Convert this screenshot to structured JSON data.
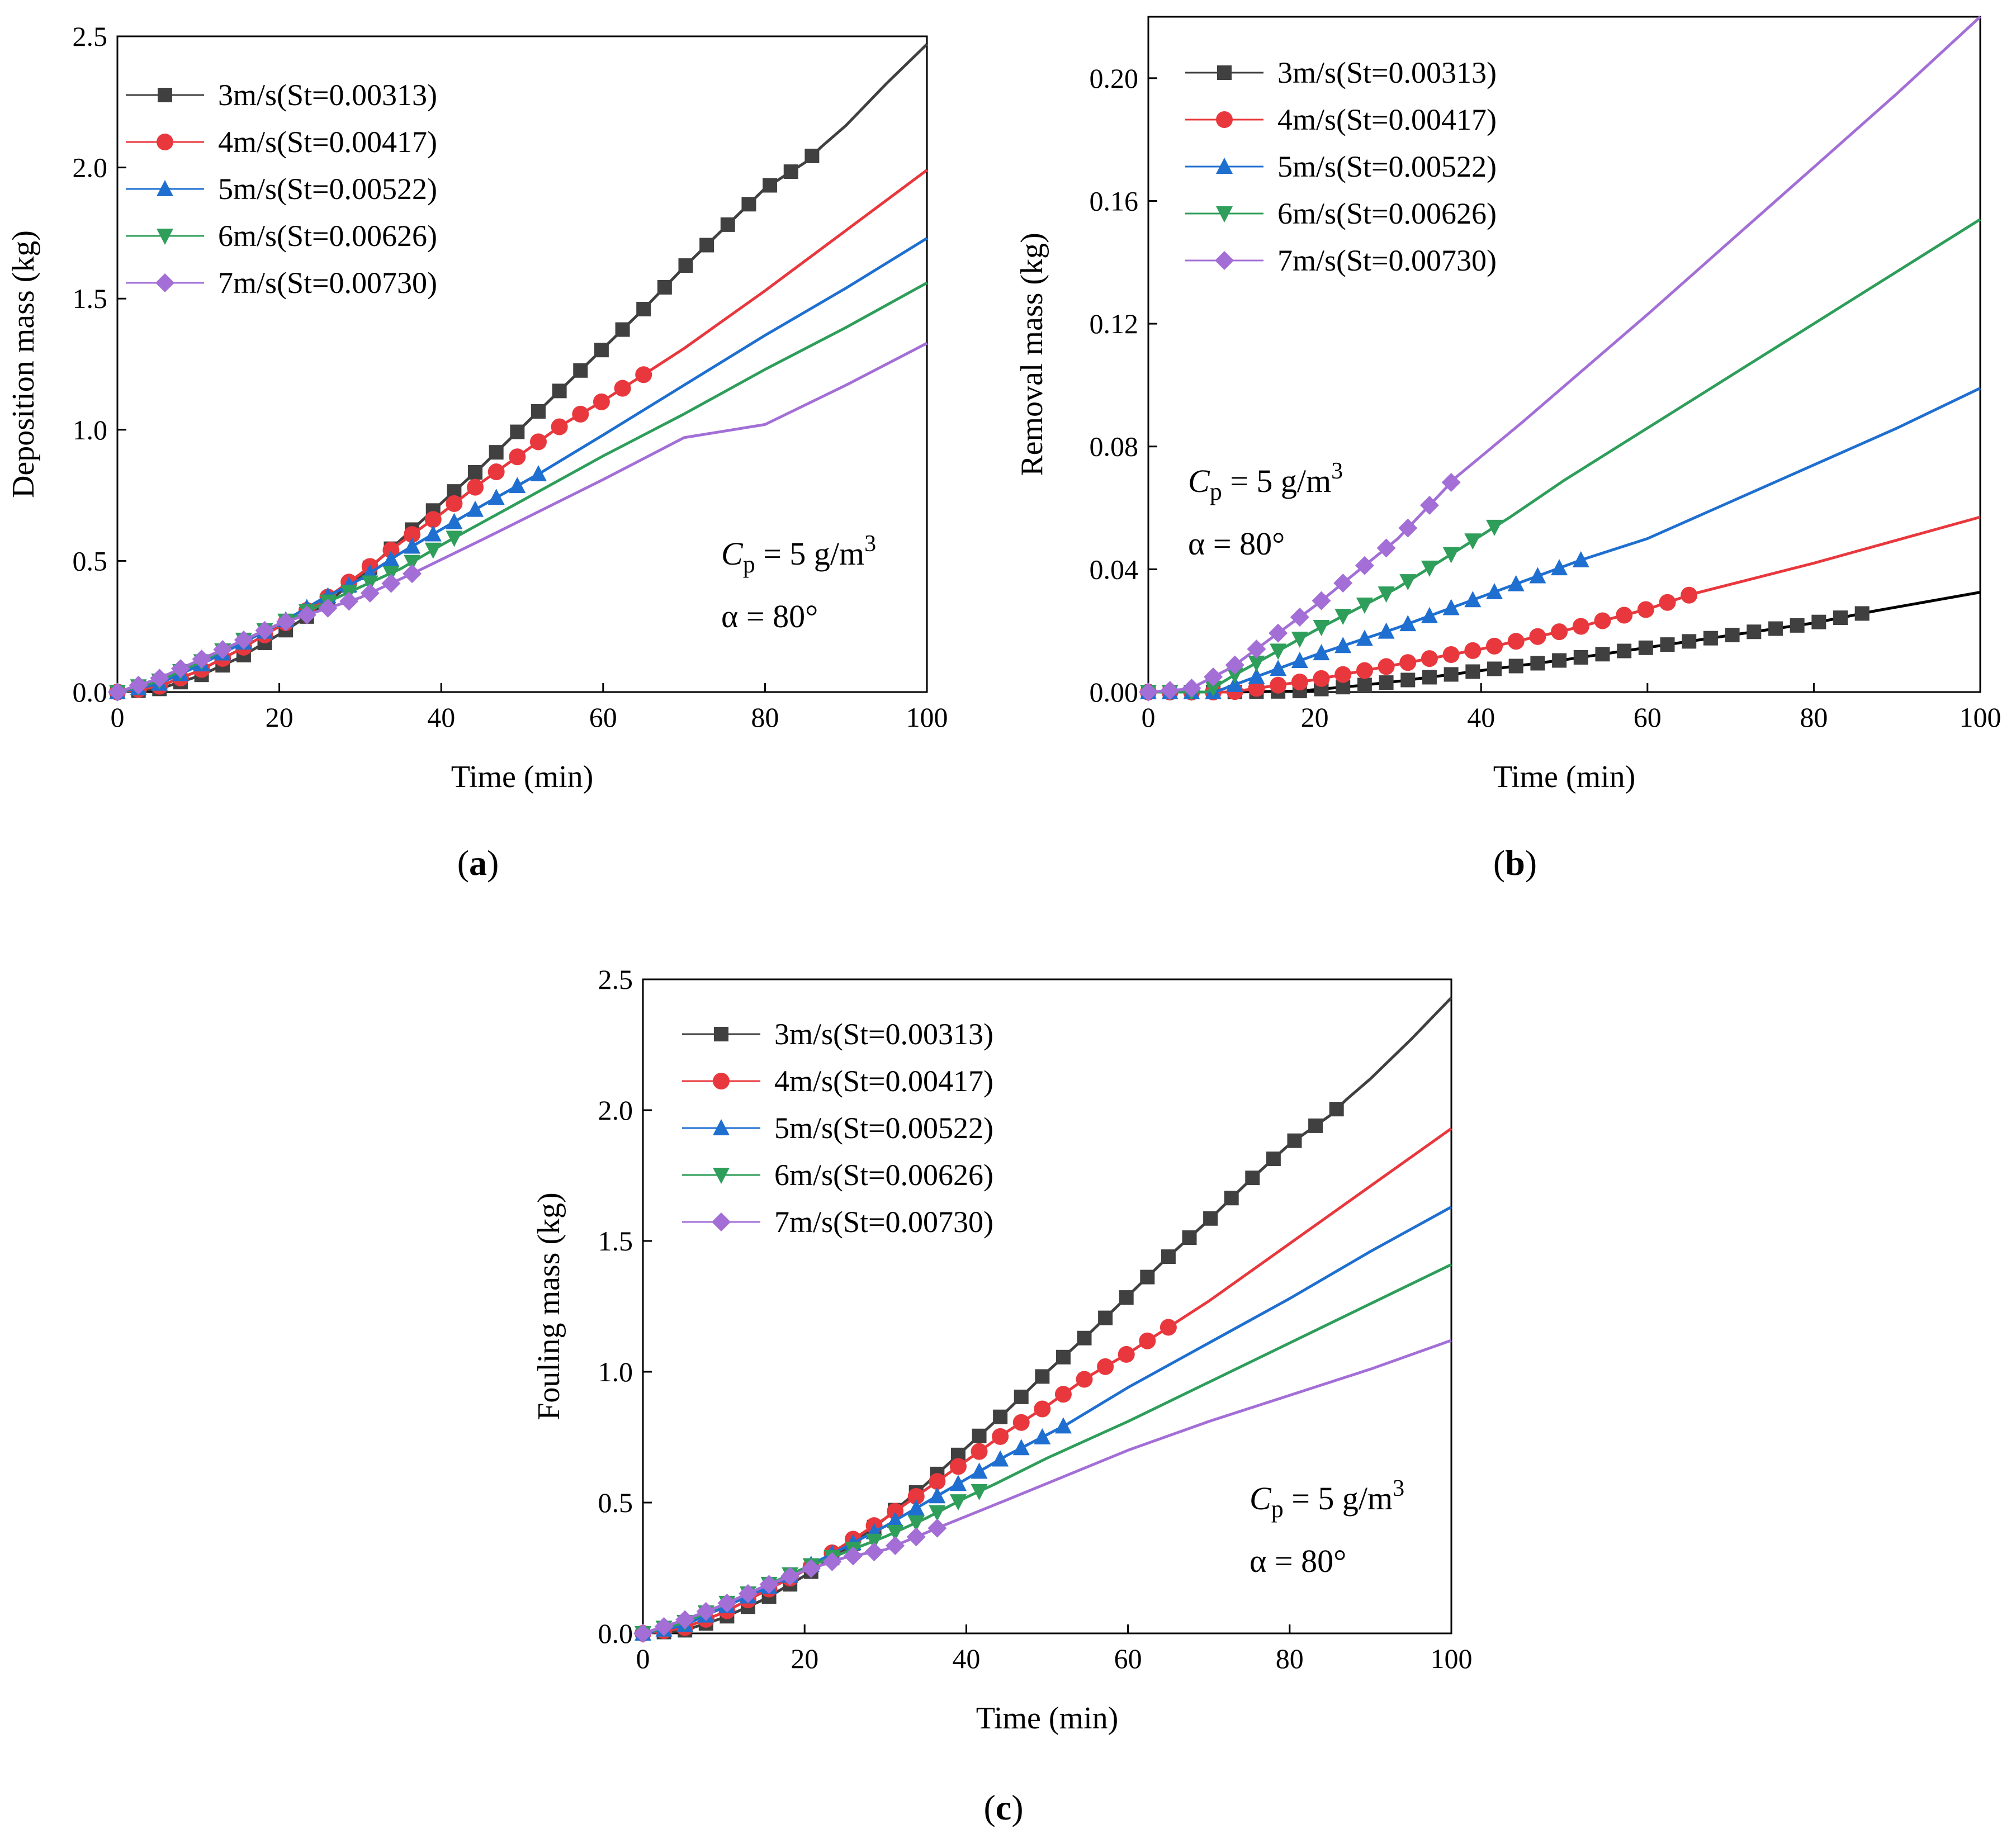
{
  "legend": [
    "3m/s(St=0.00313)",
    "4m/s(St=0.00417)",
    "5m/s(St=0.00522)",
    "6m/s(St=0.00626)",
    "7m/s(St=0.00730)"
  ],
  "colors": {
    "series": [
      "#404040",
      "#e8383d",
      "#1f6fd0",
      "#2e9e5a",
      "#a36fd6"
    ],
    "removal_3ms_line": "#000000"
  },
  "markers": [
    "square",
    "circle",
    "triangle-up",
    "triangle-down",
    "diamond"
  ],
  "panels": [
    {
      "tag": "(a)",
      "annotation": {
        "cp": "C",
        "cp_sub": "p",
        "cp_rest": " = 5 g/m",
        "cp_sup": "3",
        "alpha": "α = 80°"
      }
    },
    {
      "tag": "(b)",
      "annotation": {
        "cp": "C",
        "cp_sub": "p",
        "cp_rest": " = 5 g/m",
        "cp_sup": "3",
        "alpha": "α = 80°"
      }
    },
    {
      "tag": "(c)",
      "annotation": {
        "cp": "C",
        "cp_sub": "p",
        "cp_rest": " = 5 g/m",
        "cp_sup": "3",
        "alpha": "α = 80°"
      }
    }
  ],
  "chart_data": [
    {
      "type": "line",
      "title": "",
      "xlabel": "Time (min)",
      "ylabel": "Deposition mass (kg)",
      "xlim": [
        0,
        100
      ],
      "ylim": [
        0,
        2.5
      ],
      "xticks": [
        "0",
        "20",
        "40",
        "60",
        "80",
        "100"
      ],
      "yticks": [
        "0.0",
        "0.5",
        "1.0",
        "1.5",
        "2.0",
        "2.5"
      ],
      "grid": false,
      "legend_position": "top-left",
      "series": [
        {
          "name": "3m/s(St=0.00313)",
          "x": [
            0,
            5,
            10,
            15,
            20,
            25,
            30,
            35,
            40,
            45,
            50,
            55,
            60,
            65,
            70,
            75,
            80,
            85,
            87,
            90,
            95,
            100
          ],
          "y": [
            0.0,
            0.01,
            0.06,
            0.13,
            0.22,
            0.32,
            0.44,
            0.58,
            0.72,
            0.86,
            1.01,
            1.16,
            1.31,
            1.46,
            1.62,
            1.77,
            1.92,
            2.02,
            2.08,
            2.16,
            2.32,
            2.47
          ],
          "marker_end": 87
        },
        {
          "name": "4m/s(St=0.00417)",
          "x": [
            0,
            5,
            10,
            15,
            20,
            25,
            30,
            35,
            40,
            45,
            50,
            55,
            60,
            65.5,
            70,
            80,
            90,
            100
          ],
          "y": [
            0.0,
            0.02,
            0.08,
            0.16,
            0.25,
            0.34,
            0.45,
            0.57,
            0.68,
            0.8,
            0.91,
            1.02,
            1.11,
            1.22,
            1.31,
            1.53,
            1.76,
            1.99
          ],
          "marker_end": 65.5
        },
        {
          "name": "5m/s(St=0.00522)",
          "x": [
            0,
            5,
            10,
            15,
            20,
            25,
            30,
            35,
            40,
            45,
            52.5,
            60,
            70,
            80,
            90,
            100
          ],
          "y": [
            0.0,
            0.03,
            0.1,
            0.18,
            0.26,
            0.35,
            0.43,
            0.53,
            0.62,
            0.71,
            0.84,
            0.98,
            1.17,
            1.36,
            1.54,
            1.73
          ],
          "marker_end": 52.5
        },
        {
          "name": "6m/s(St=0.00626)",
          "x": [
            0,
            5,
            10,
            15,
            20,
            25,
            30,
            35,
            40,
            43.5,
            50,
            60,
            70,
            80,
            90,
            100
          ],
          "y": [
            0.0,
            0.04,
            0.11,
            0.19,
            0.26,
            0.33,
            0.4,
            0.47,
            0.56,
            0.62,
            0.73,
            0.9,
            1.06,
            1.23,
            1.39,
            1.56
          ],
          "marker_end": 43.5
        },
        {
          "name": "7m/s(St=0.00730)",
          "x": [
            0,
            5,
            10,
            15,
            20,
            25,
            30,
            37,
            45,
            60,
            70,
            80,
            90,
            100
          ],
          "y": [
            0.0,
            0.05,
            0.12,
            0.19,
            0.26,
            0.31,
            0.36,
            0.46,
            0.58,
            0.81,
            0.97,
            1.02,
            1.17,
            1.33
          ],
          "marker_end": 37
        }
      ]
    },
    {
      "type": "line",
      "title": "",
      "xlabel": "Time (min)",
      "ylabel": "Removal mass (kg)",
      "xlim": [
        0,
        100
      ],
      "ylim": [
        0,
        0.22
      ],
      "xticks": [
        "0",
        "20",
        "40",
        "60",
        "80",
        "100"
      ],
      "yticks": [
        "0.00",
        "0.04",
        "0.08",
        "0.12",
        "0.16",
        "0.20"
      ],
      "grid": false,
      "legend_position": "top-left",
      "series": [
        {
          "name": "3m/s(St=0.00313)",
          "x": [
            0,
            10,
            18,
            25,
            30,
            40,
            50,
            60,
            70,
            80,
            87.5,
            100
          ],
          "y": [
            0.0,
            0.0,
            0.0003,
            0.002,
            0.0035,
            0.007,
            0.0105,
            0.0145,
            0.0185,
            0.0225,
            0.0265,
            0.0325
          ],
          "marker_end": 87.5
        },
        {
          "name": "4m/s(St=0.00417)",
          "x": [
            0,
            10,
            15,
            20,
            30,
            40,
            50,
            60,
            65.5,
            80,
            100
          ],
          "y": [
            0.0,
            0.0,
            0.002,
            0.004,
            0.009,
            0.014,
            0.02,
            0.027,
            0.032,
            0.042,
            0.057
          ],
          "marker_end": 65.5
        },
        {
          "name": "5m/s(St=0.00522)",
          "x": [
            0,
            8,
            10,
            20,
            30,
            40,
            52,
            60,
            70,
            80,
            90,
            100
          ],
          "y": [
            0.0,
            0.0,
            0.002,
            0.012,
            0.021,
            0.031,
            0.043,
            0.05,
            0.062,
            0.074,
            0.086,
            0.099
          ],
          "marker_end": 52
        },
        {
          "name": "6m/s(St=0.00626)",
          "x": [
            0,
            7,
            10,
            20,
            30,
            40,
            43.5,
            50,
            60,
            70,
            80,
            90,
            100
          ],
          "y": [
            0.0,
            0.0,
            0.005,
            0.02,
            0.034,
            0.051,
            0.057,
            0.069,
            0.086,
            0.103,
            0.12,
            0.137,
            0.154
          ],
          "marker_end": 43.5
        },
        {
          "name": "7m/s(St=0.00730)",
          "x": [
            0,
            5,
            10,
            20,
            30,
            37,
            45,
            60,
            70,
            80,
            90,
            100
          ],
          "y": [
            0.0,
            0.001,
            0.008,
            0.028,
            0.05,
            0.07,
            0.088,
            0.123,
            0.147,
            0.171,
            0.195,
            0.22
          ],
          "marker_end": 37
        }
      ]
    },
    {
      "type": "line",
      "title": "",
      "xlabel": "Time (min)",
      "ylabel": "Fouling mass (kg)",
      "xlim": [
        0,
        100
      ],
      "ylim": [
        0,
        2.5
      ],
      "xticks": [
        "0",
        "20",
        "40",
        "60",
        "80",
        "100"
      ],
      "yticks": [
        "0.0",
        "0.5",
        "1.0",
        "1.5",
        "2.0",
        "2.5"
      ],
      "grid": false,
      "legend_position": "top-left",
      "series": [
        {
          "name": "3m/s(St=0.00313)",
          "x": [
            0,
            5,
            10,
            15,
            20,
            25,
            30,
            35,
            40,
            45,
            50,
            55,
            60,
            65,
            70,
            75,
            80,
            85,
            87,
            90,
            95,
            100
          ],
          "y": [
            0.0,
            0.01,
            0.06,
            0.13,
            0.22,
            0.32,
            0.44,
            0.57,
            0.71,
            0.85,
            1.0,
            1.14,
            1.29,
            1.44,
            1.58,
            1.73,
            1.87,
            1.98,
            2.04,
            2.12,
            2.27,
            2.43
          ],
          "marker_end": 87
        },
        {
          "name": "4m/s(St=0.00417)",
          "x": [
            0,
            5,
            10,
            15,
            20,
            25,
            30,
            35,
            40,
            45,
            50,
            55,
            60,
            65.5,
            70,
            80,
            90,
            100
          ],
          "y": [
            0.0,
            0.02,
            0.08,
            0.16,
            0.24,
            0.34,
            0.44,
            0.55,
            0.66,
            0.77,
            0.87,
            0.98,
            1.07,
            1.18,
            1.27,
            1.49,
            1.71,
            1.93
          ],
          "marker_end": 65.5
        },
        {
          "name": "5m/s(St=0.00522)",
          "x": [
            0,
            5,
            10,
            15,
            20,
            25,
            30,
            35,
            40,
            45,
            52.5,
            60,
            70,
            80,
            90,
            100
          ],
          "y": [
            0.0,
            0.03,
            0.1,
            0.17,
            0.25,
            0.33,
            0.41,
            0.5,
            0.59,
            0.68,
            0.8,
            0.94,
            1.11,
            1.28,
            1.46,
            1.63
          ],
          "marker_end": 52.5
        },
        {
          "name": "6m/s(St=0.00626)",
          "x": [
            0,
            5,
            10,
            15,
            20,
            25,
            30,
            35,
            40,
            43.5,
            50,
            60,
            70,
            80,
            90,
            100
          ],
          "y": [
            0.0,
            0.04,
            0.11,
            0.18,
            0.25,
            0.31,
            0.37,
            0.44,
            0.52,
            0.57,
            0.67,
            0.81,
            0.96,
            1.11,
            1.26,
            1.41
          ],
          "marker_end": 43.5
        },
        {
          "name": "7m/s(St=0.00730)",
          "x": [
            0,
            5,
            10,
            15,
            20,
            25,
            30,
            37,
            45,
            60,
            70,
            80,
            90,
            100
          ],
          "y": [
            0.0,
            0.05,
            0.11,
            0.18,
            0.24,
            0.29,
            0.32,
            0.41,
            0.51,
            0.7,
            0.81,
            0.91,
            1.01,
            1.12
          ],
          "marker_end": 37
        }
      ]
    }
  ]
}
